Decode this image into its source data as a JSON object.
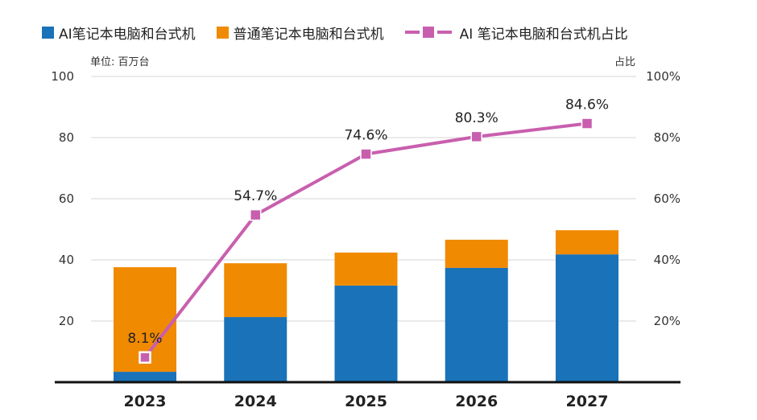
{
  "chart_data": {
    "type": "bar",
    "subtype": "stacked-bar-with-line",
    "title": "",
    "categories": [
      "2023",
      "2024",
      "2025",
      "2026",
      "2027"
    ],
    "series": [
      {
        "name": "AI笔记本电脑和台式机",
        "type": "bar",
        "axis": "left",
        "color": "#1a72b9",
        "values": [
          3.4,
          21.3,
          31.6,
          37.4,
          41.8
        ]
      },
      {
        "name": "普通笔记本电脑和台式机",
        "type": "bar",
        "axis": "left",
        "color": "#f08a00",
        "values": [
          34.2,
          17.6,
          10.8,
          9.2,
          7.9
        ]
      },
      {
        "name": "AI 笔记本电脑和台式机占比",
        "type": "line",
        "axis": "right",
        "color": "#c85fae",
        "values": [
          8.1,
          54.7,
          74.6,
          80.3,
          84.6
        ],
        "labels": [
          "8.1%",
          "54.7%",
          "74.6%",
          "80.3%",
          "84.6%"
        ]
      }
    ],
    "left_axis": {
      "label": "单位: 百万台",
      "ylim": [
        0,
        100
      ],
      "ticks": [
        20,
        40,
        60,
        80,
        100
      ],
      "tick_labels": [
        "20",
        "40",
        "60",
        "80",
        "100"
      ]
    },
    "right_axis": {
      "label": "占比",
      "ylim": [
        0,
        100
      ],
      "ticks": [
        20,
        40,
        60,
        80,
        100
      ],
      "tick_labels": [
        "20%",
        "40%",
        "60%",
        "80%",
        "100%"
      ]
    },
    "xlabel": "",
    "grid": true,
    "legend": "top"
  },
  "legend": {
    "items": [
      {
        "label": "AI笔记本电脑和台式机",
        "color": "#1a72b9",
        "kind": "square"
      },
      {
        "label": "普通笔记本电脑和台式机",
        "color": "#f08a00",
        "kind": "square"
      },
      {
        "label": "AI 笔记本电脑和台式机占比",
        "color": "#c85fae",
        "kind": "line-marker"
      }
    ]
  }
}
